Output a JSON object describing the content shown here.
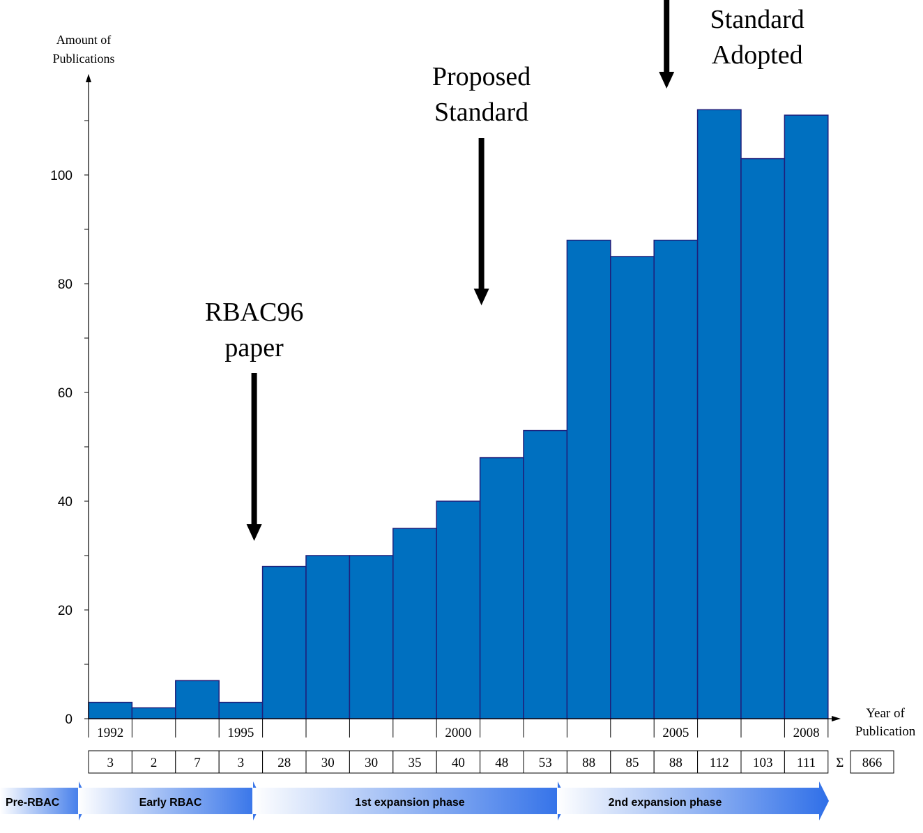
{
  "chart_data": {
    "type": "bar",
    "ylabel": "Amount of\nPublications",
    "xlabel": "Year of\nPublication",
    "ylim": [
      0,
      115
    ],
    "yticks": [
      0,
      20,
      40,
      60,
      80,
      100
    ],
    "years": [
      1992,
      1993,
      1994,
      1995,
      1996,
      1997,
      1998,
      1999,
      2000,
      2001,
      2002,
      2003,
      2004,
      2005,
      2006,
      2007,
      2008
    ],
    "values": [
      3,
      2,
      7,
      3,
      28,
      30,
      30,
      35,
      40,
      48,
      53,
      88,
      85,
      88,
      112,
      103,
      111
    ],
    "xtick_labels": [
      {
        "year": 1992,
        "label": "1992"
      },
      {
        "year": 1995,
        "label": "1995"
      },
      {
        "year": 2000,
        "label": "2000"
      },
      {
        "year": 2005,
        "label": "2005"
      },
      {
        "year": 2008,
        "label": "2008"
      }
    ],
    "table_values": [
      "3",
      "2",
      "7",
      "3",
      "28",
      "30",
      "30",
      "35",
      "40",
      "48",
      "53",
      "88",
      "85",
      "88",
      "112",
      "103",
      "111"
    ],
    "sum_symbol": "Σ",
    "total": "866",
    "annotations": [
      {
        "text": "RBAC96\npaper",
        "year": 1996
      },
      {
        "text": "Proposed\nStandard",
        "year": 2001
      },
      {
        "text": "Standard\nAdopted",
        "year": 2005
      }
    ],
    "phases": [
      {
        "label": "Pre-RBAC",
        "start_year": 1992,
        "end_year": 1992
      },
      {
        "label": "Early RBAC",
        "start_year": 1993,
        "end_year": 1995
      },
      {
        "label": "1st expansion phase",
        "start_year": 1996,
        "end_year": 2002
      },
      {
        "label": "2nd expansion phase",
        "start_year": 2003,
        "end_year": 2008
      }
    ],
    "colors": {
      "bar_fill": "#0070C0",
      "bar_stroke": "#1F1F7A",
      "arrow_start": "#FFFFFF",
      "arrow_end": "#2F6FE8"
    },
    "grid": false,
    "legend": "none"
  }
}
